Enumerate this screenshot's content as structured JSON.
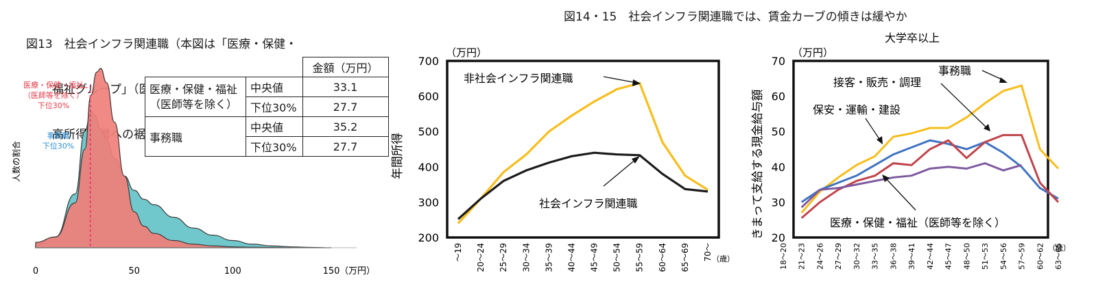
{
  "fig13": {
    "title_lines": [
      "図13　社会インフラ関連職（本図は「医療・保健・",
      "福祉グループ」（医師等を除く））では",
      "高所得者層への裾野が広がっていない"
    ],
    "ylabel": "人数の割合",
    "xunit": "（万円）",
    "legend_red": [
      "医療・保健・福祉",
      "（医師等を除く）",
      "下位30%"
    ],
    "legend_blue": [
      "事務職",
      "下位30%"
    ],
    "table": {
      "header": "金額（万円）",
      "group1": [
        "医療・保健・福祉",
        "（医師等を除く）"
      ],
      "group2": "事務職",
      "median": "中央値",
      "low30": "下位30%",
      "v1": "33.1",
      "v2": "27.7",
      "v3": "35.2",
      "v4": "27.7"
    }
  },
  "fig14": {
    "title": "図14・15　社会インフラ関連職では、賃金カーブの傾きは緩やか"
  },
  "chart_data": [
    {
      "type": "area",
      "title": "高所得者層への裾野が広がっていない",
      "xlabel": "（万円）",
      "ylabel": "人数の割合",
      "xlim": [
        0,
        150
      ],
      "xticks": [
        "0",
        "50",
        "100",
        "150"
      ],
      "series": [
        {
          "name": "医療・保健・福祉（医師等を除く）",
          "color": "#f07f7a",
          "x": [
            0,
            10,
            20,
            25,
            28,
            31,
            33,
            36,
            40,
            45,
            50,
            55,
            60,
            70,
            80,
            90,
            100,
            110,
            120,
            130
          ],
          "values": [
            0.03,
            0.06,
            0.25,
            0.55,
            0.85,
            0.98,
            1.0,
            0.92,
            0.7,
            0.4,
            0.2,
            0.12,
            0.08,
            0.04,
            0.02,
            0.01,
            0.005,
            0.003,
            0.002,
            0.0
          ]
        },
        {
          "name": "事務職",
          "color": "#70c8cc",
          "x": [
            0,
            10,
            20,
            25,
            28,
            30,
            33,
            36,
            40,
            45,
            50,
            55,
            60,
            70,
            80,
            90,
            100,
            110,
            120,
            130,
            140,
            150
          ],
          "values": [
            0.02,
            0.06,
            0.3,
            0.65,
            0.76,
            0.74,
            0.66,
            0.6,
            0.5,
            0.4,
            0.32,
            0.27,
            0.24,
            0.17,
            0.11,
            0.07,
            0.04,
            0.02,
            0.01,
            0.005,
            0.002,
            0.0
          ]
        }
      ],
      "annotations": [
        {
          "x": 27.7,
          "label": "下位30%"
        }
      ]
    },
    {
      "type": "line",
      "ylabel": "年間所得",
      "yunit": "（万円）",
      "xunit": "（歳）",
      "ylim": [
        200,
        700
      ],
      "yticks": [
        "200",
        "300",
        "400",
        "500",
        "600",
        "700"
      ],
      "categories": [
        "～19",
        "20～24",
        "25～29",
        "30～34",
        "35～39",
        "40～44",
        "45～49",
        "50～54",
        "55～59",
        "60～64",
        "65～69",
        "70～"
      ],
      "series": [
        {
          "name": "非社会インフラ関連職",
          "color": "#f7bd1b",
          "values": [
            240,
            310,
            385,
            435,
            500,
            545,
            585,
            620,
            637,
            470,
            375,
            335
          ]
        },
        {
          "name": "社会インフラ関連職",
          "color": "#1a1a1a",
          "values": [
            252,
            310,
            360,
            390,
            412,
            430,
            440,
            435,
            433,
            380,
            337,
            330
          ]
        }
      ]
    },
    {
      "type": "line",
      "title": "大学卒以上",
      "ylabel": "きまって支給する現金給与額",
      "yunit": "（万円）",
      "xunit": "（歳）",
      "ylim": [
        20,
        70
      ],
      "yticks": [
        "20",
        "30",
        "40",
        "50",
        "60",
        "70"
      ],
      "categories": [
        "18～20",
        "21～23",
        "24～26",
        "27～29",
        "30～32",
        "33～35",
        "36～38",
        "39～41",
        "42～44",
        "45～47",
        "48～50",
        "51～53",
        "54～56",
        "57～59",
        "60～62",
        "63～65"
      ],
      "series": [
        {
          "name": "事務職",
          "color": "#f7bd1b",
          "values": [
            null,
            27.0,
            33.0,
            37.0,
            40.5,
            43.0,
            48.5,
            49.5,
            51.0,
            51.0,
            54.0,
            58.0,
            61.5,
            63.0,
            45.0,
            39.5
          ]
        },
        {
          "name": "保安・運輸・建設",
          "color": "#3f73c0",
          "values": [
            null,
            30.0,
            33.5,
            35.5,
            37.5,
            40.5,
            43.5,
            45.5,
            47.5,
            46.5,
            45.0,
            47.0,
            44.0,
            40.0,
            34.0,
            31.0
          ]
        },
        {
          "name": "接客・販売・調理",
          "color": "#c0434a",
          "values": [
            null,
            25.5,
            30.0,
            33.5,
            36.0,
            37.5,
            41.0,
            40.5,
            45.0,
            47.5,
            42.5,
            47.0,
            49.0,
            49.0,
            35.5,
            30.0
          ]
        },
        {
          "name": "医療・保健・福祉（医師等を除く）",
          "color": "#7e5aa0",
          "values": [
            null,
            28.5,
            33.5,
            34.0,
            35.0,
            36.0,
            37.0,
            37.5,
            39.5,
            40.0,
            39.5,
            41.0,
            39.0,
            40.5,
            null,
            null
          ]
        }
      ],
      "labels": [
        "事務職",
        "接客・販売・調理",
        "保安・運輸・建設",
        "医療・保健・福祉（医師等を除く）"
      ]
    }
  ]
}
